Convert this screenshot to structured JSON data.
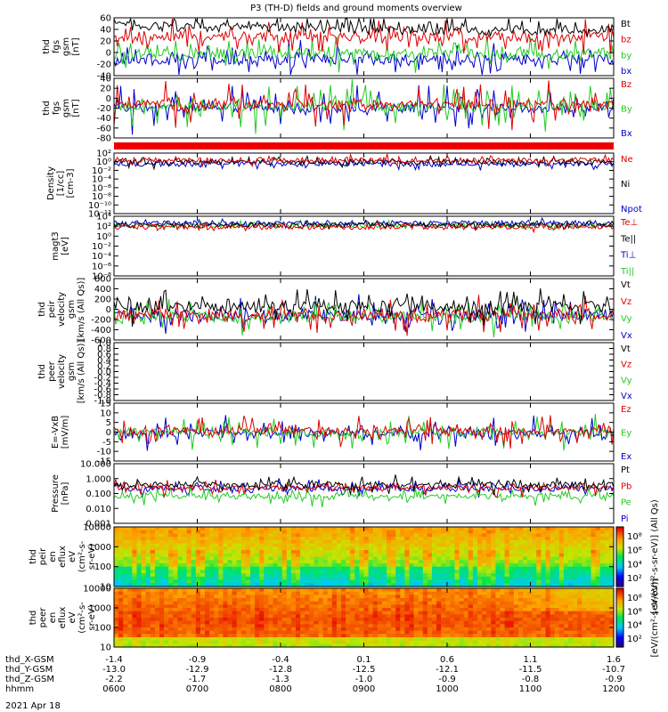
{
  "title": "P3 (TH-D) fields and ground moments overview",
  "date_label": "2021 Apr 18",
  "chart_data": [
    {
      "type": "line",
      "ylabel": [
        "thd",
        "fgs",
        "gsm",
        "[nT]"
      ],
      "ylim": [
        -40,
        60
      ],
      "yticks": [
        "60",
        "40",
        "20",
        "0",
        "-20",
        "-40"
      ],
      "series": [
        {
          "name": "Bt",
          "color": "#000000"
        },
        {
          "name": "bz",
          "color": "#dd0000"
        },
        {
          "name": "by",
          "color": "#22cc22"
        },
        {
          "name": "bx",
          "color": "#0000cc"
        }
      ]
    },
    {
      "type": "line",
      "ylabel": [
        "thd",
        "fgs",
        "gsm",
        "[nT]"
      ],
      "ylim": [
        -80,
        40
      ],
      "yticks": [
        "40",
        "20",
        "0",
        "-20",
        "-40",
        "-60",
        "-80"
      ],
      "series": [
        {
          "name": "Bz",
          "color": "#dd0000"
        },
        {
          "name": "By",
          "color": "#22cc22"
        },
        {
          "name": "Bx",
          "color": "#0000cc"
        }
      ]
    },
    {
      "type": "line",
      "ylabel": [
        "Density",
        "[1/cc]",
        "[cm-3]"
      ],
      "log": true,
      "yticks": [
        "10²",
        "10⁰",
        "10⁻²",
        "10⁻⁴",
        "10⁻⁶",
        "10⁻⁸",
        "10⁻¹⁰",
        "10⁻¹²"
      ],
      "series": [
        {
          "name": "Ne",
          "color": "#dd0000"
        },
        {
          "name": "Ni",
          "color": "#000000"
        },
        {
          "name": "Npot",
          "color": "#0000cc"
        }
      ]
    },
    {
      "type": "line",
      "ylabel": [
        "magt3",
        "[eV]"
      ],
      "log": true,
      "yticks": [
        "10⁴",
        "10²",
        "10⁰",
        "10⁻²",
        "10⁻⁴",
        "10⁻⁶",
        "10⁻⁸"
      ],
      "series": [
        {
          "name": "Te⊥",
          "color": "#dd0000"
        },
        {
          "name": "Te||",
          "color": "#000000"
        },
        {
          "name": "Ti⊥",
          "color": "#0000cc"
        },
        {
          "name": "Ti||",
          "color": "#22cc22"
        }
      ]
    },
    {
      "type": "line",
      "ylabel": [
        "thd",
        "peir",
        "velocity",
        "gsm",
        "[km/s (All Qs)]"
      ],
      "ylim": [
        -600,
        600
      ],
      "yticks": [
        "600",
        "400",
        "200",
        "0",
        "-200",
        "-400",
        "-600"
      ],
      "series": [
        {
          "name": "Vt",
          "color": "#000000"
        },
        {
          "name": "Vz",
          "color": "#dd0000"
        },
        {
          "name": "Vy",
          "color": "#22cc22"
        },
        {
          "name": "Vx",
          "color": "#0000cc"
        }
      ]
    },
    {
      "type": "line",
      "ylabel": [
        "thd",
        "peer",
        "velocity",
        "gsm",
        "[km/s (All Qs)]"
      ],
      "ylim": [
        -1.0,
        1.0
      ],
      "yticks": [
        "1.0",
        "0.8",
        "0.6",
        "0.4",
        "0.2",
        "0.0",
        "-0.2",
        "-0.4",
        "-0.6",
        "-0.8",
        "-1.0"
      ],
      "series": [
        {
          "name": "Vt",
          "color": "#000000"
        },
        {
          "name": "Vz",
          "color": "#dd0000"
        },
        {
          "name": "Vy",
          "color": "#22cc22"
        },
        {
          "name": "Vx",
          "color": "#0000cc"
        }
      ]
    },
    {
      "type": "line",
      "ylabel": [
        "E=-VxB",
        "[mV/m]"
      ],
      "ylim": [
        -15,
        15
      ],
      "yticks": [
        "15",
        "10",
        "5",
        "0",
        "-5",
        "-10",
        "-15"
      ],
      "series": [
        {
          "name": "Ez",
          "color": "#dd0000"
        },
        {
          "name": "Ey",
          "color": "#22cc22"
        },
        {
          "name": "Ex",
          "color": "#0000cc"
        }
      ]
    },
    {
      "type": "line",
      "ylabel": [
        "Pressure",
        "[nPa]"
      ],
      "log": true,
      "yticks": [
        "10.000",
        "1.000",
        "0.100",
        "0.010",
        "0.001"
      ],
      "series": [
        {
          "name": "Pt",
          "color": "#000000"
        },
        {
          "name": "Pb",
          "color": "#dd0000"
        },
        {
          "name": "Pe",
          "color": "#22cc22"
        },
        {
          "name": "Pi",
          "color": "#0000cc"
        }
      ]
    },
    {
      "type": "heatmap",
      "ylabel": [
        "thd",
        "peir",
        "en",
        "eflux",
        "eV",
        "(cm²-s-",
        "sr-eV)"
      ],
      "yticks": [
        "10000",
        "1000",
        "100",
        "10"
      ],
      "colorbar_label": "[eV/(cm²-s-sr-eV)] (All Qs)",
      "colorbar_ticks": [
        "10⁸",
        "10⁶",
        "10⁴",
        "10²"
      ]
    },
    {
      "type": "heatmap",
      "ylabel": [
        "thd",
        "peer",
        "en",
        "eflux",
        "eV",
        "(cm²-s-",
        "sr-eV)"
      ],
      "yticks": [
        "10000",
        "1000",
        "100",
        "10"
      ],
      "colorbar_label": "[eV/(cm²-s-sr-eV)]",
      "colorbar_ticks": [
        "10⁸",
        "10⁶",
        "10⁴",
        "10²"
      ]
    }
  ],
  "x_axis": {
    "row_labels": [
      "thd_X-GSM",
      "thd_Y-GSM",
      "thd_Z-GSM",
      "hhmm"
    ],
    "columns": [
      [
        "-1.4",
        "-13.0",
        "-2.2",
        "0600"
      ],
      [
        "-0.9",
        "-12.9",
        "-1.7",
        "0700"
      ],
      [
        "-0.4",
        "-12.8",
        "-1.3",
        "0800"
      ],
      [
        "0.1",
        "-12.5",
        "-1.0",
        "0900"
      ],
      [
        "0.6",
        "-12.1",
        "-0.9",
        "1000"
      ],
      [
        "1.1",
        "-11.5",
        "-0.8",
        "1100"
      ],
      [
        "1.6",
        "-10.7",
        "-0.9",
        "1200"
      ]
    ]
  }
}
